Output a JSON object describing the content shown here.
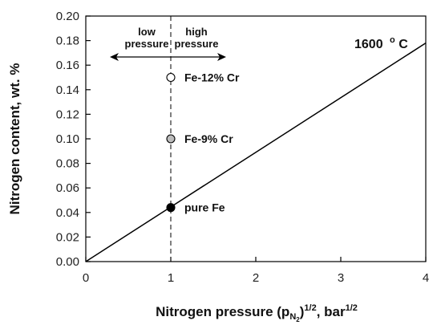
{
  "chart_data": {
    "type": "scatter",
    "title": "",
    "xlabel_main": "Nitrogen pressure (p",
    "xlabel_sub": "N",
    "xlabel_subsub": "2",
    "xlabel_rest": ")",
    "xlabel_exp": "1/2",
    "xlabel_tail": ", bar",
    "xlabel_tail_exp": "1/2",
    "ylabel": "Nitrogen content, wt. %",
    "xlim": [
      0,
      4
    ],
    "ylim": [
      0,
      0.2
    ],
    "x_ticks": [
      "0",
      "1",
      "2",
      "3",
      "4"
    ],
    "y_ticks": [
      "0.00",
      "0.02",
      "0.04",
      "0.06",
      "0.08",
      "0.10",
      "0.12",
      "0.14",
      "0.16",
      "0.18",
      "0.20"
    ],
    "line": {
      "x": [
        0,
        4
      ],
      "y": [
        0,
        0.178
      ]
    },
    "vline_x": 1,
    "points": [
      {
        "x": 1,
        "y": 0.15,
        "label": "Fe-12% Cr",
        "fill": "#ffffff"
      },
      {
        "x": 1,
        "y": 0.1,
        "label": "Fe-9% Cr",
        "fill": "#bdbdbd"
      },
      {
        "x": 1,
        "y": 0.044,
        "label": "pure Fe",
        "fill": "#000000"
      }
    ],
    "annotations": {
      "low_line1": "low",
      "low_line2": "pressure",
      "high_line1": "high",
      "high_line2": "pressure",
      "temperature": "1600",
      "temperature_unit": "C",
      "degree": "o"
    },
    "grid": false
  }
}
